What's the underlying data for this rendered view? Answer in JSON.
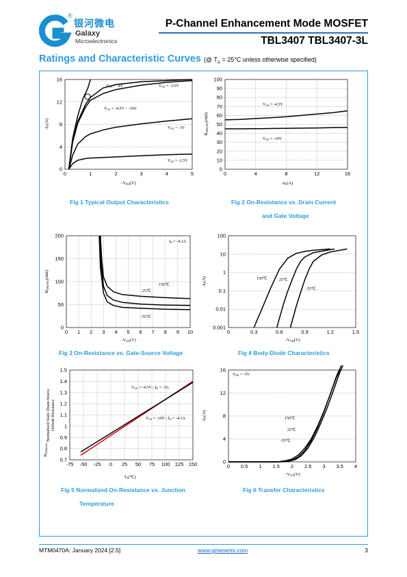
{
  "header": {
    "logo_cn": "银河微电",
    "logo_brand": "Galaxy",
    "logo_sub": "Microelectronics",
    "registered": "®",
    "title_line1": "P-Channel Enhancement Mode MOSFET",
    "title_line2": "TBL3407 TBL3407-3L",
    "accent_color": "#2d9bdc"
  },
  "section": {
    "title": "Ratings and Characteristic Curves",
    "condition_prefix": "(@ T",
    "condition_sub": "A",
    "condition_suffix": " = 25°C unless otherwise specified)"
  },
  "captions": {
    "fig1": "Fig 1    Typical Output Characteristics",
    "fig2_line1": "Fig 2    On-Resistance vs. Drain Current",
    "fig2_line2": "and Gate Voltage",
    "fig3": "Fig 3    On-Resistance vs. Gate-Source Voltage",
    "fig4": "Fig 4    Body-Diode Characteristics",
    "fig5_line1": "Fig 5    Normalized On-Resistance vs. Junction",
    "fig5_line2": "Temperature",
    "fig6": "Fig 6    Transfer Characteristics"
  },
  "chart_data": [
    {
      "id": "fig1",
      "type": "line",
      "xlabel": "-V_DS(V)",
      "ylabel": "-I_D(A)",
      "xlim": [
        0,
        5
      ],
      "ylim": [
        0,
        16
      ],
      "xticks": [
        "0",
        "1",
        "2",
        "3",
        "4",
        "5"
      ],
      "yticks": [
        "0",
        "4",
        "8",
        "12",
        "16"
      ],
      "series": [
        {
          "name": "V_GS = -4V",
          "x": [
            0.15,
            0.3,
            0.5,
            0.8,
            1.0,
            1.5,
            2.0,
            3.0,
            4.0,
            5.0
          ],
          "y": [
            0,
            5,
            8.5,
            11.5,
            12.8,
            14.5,
            15.1,
            15.6,
            15.8,
            16
          ]
        },
        {
          "name": "V_GS = -3.5V",
          "x": [
            0.15,
            0.3,
            0.5,
            0.8,
            1.0,
            1.5,
            2.0,
            3.0,
            4.0,
            5.0
          ],
          "y": [
            0,
            4.8,
            8.2,
            11,
            12.3,
            13.5,
            14.2,
            15,
            15.5,
            15.8
          ]
        },
        {
          "name": "V_GS = -4.5V ~ -10V",
          "x": [
            0.15,
            0.3,
            0.5,
            0.7,
            0.9,
            1.0
          ],
          "y": [
            0,
            5.5,
            9.5,
            12.5,
            14.5,
            16
          ]
        },
        {
          "name": "V_GS = -3V",
          "x": [
            0.15,
            0.3,
            0.5,
            0.8,
            1.0,
            1.5,
            2.0,
            3.0,
            4.0,
            5.0
          ],
          "y": [
            0,
            2.5,
            4.5,
            5.8,
            6.3,
            7,
            7.5,
            8.1,
            8.6,
            9
          ]
        },
        {
          "name": "V_GS = -2.5V",
          "x": [
            0.15,
            0.3,
            0.5,
            0.8,
            1.0,
            2.0,
            3.0,
            4.0,
            5.0
          ],
          "y": [
            0,
            1,
            1.6,
            1.9,
            2,
            2.2,
            2.4,
            2.6,
            2.7
          ]
        }
      ],
      "labels": [
        "V_GS = -4V",
        "V_GS = -3.5V",
        "V_GS = -4.5V ~ -10V",
        "V_GS = -3V",
        "V_GS = -2.5V"
      ]
    },
    {
      "id": "fig2",
      "type": "line",
      "xlabel": "-I_D(A)",
      "ylabel": "R_DS(ON)(mΩ)",
      "xlim": [
        0,
        16
      ],
      "ylim": [
        0,
        100
      ],
      "xticks": [
        "0",
        "4",
        "8",
        "12",
        "16"
      ],
      "yticks": [
        "0",
        "10",
        "20",
        "30",
        "40",
        "50",
        "60",
        "70",
        "80",
        "90",
        "100"
      ],
      "series": [
        {
          "name": "V_GS = -4.5V",
          "x": [
            0,
            2,
            4,
            6,
            8,
            10,
            12,
            14,
            16
          ],
          "y": [
            55,
            55.5,
            56.5,
            57.5,
            58.5,
            60,
            61.5,
            63,
            65
          ]
        },
        {
          "name": "V_GS = -10V",
          "x": [
            0,
            2,
            4,
            6,
            8,
            10,
            12,
            14,
            16
          ],
          "y": [
            45,
            45,
            45.2,
            45.4,
            45.6,
            45.8,
            46,
            46.3,
            46.6
          ]
        }
      ],
      "labels": [
        "V_GS = -4.5V",
        "V_GS = -10V"
      ]
    },
    {
      "id": "fig3",
      "type": "line",
      "xlabel": "-V_GS(V)",
      "ylabel": "R_DS(ON)(mΩ)",
      "xlim": [
        0,
        10
      ],
      "ylim": [
        0,
        200
      ],
      "xticks": [
        "0",
        "1",
        "2",
        "3",
        "4",
        "5",
        "6",
        "7",
        "8",
        "9",
        "10"
      ],
      "yticks": [
        "0",
        "50",
        "100",
        "150",
        "200"
      ],
      "annotation": "I_D = -4.1A",
      "series": [
        {
          "name": "150℃",
          "x": [
            2.75,
            2.85,
            3.0,
            3.3,
            3.8,
            4.5,
            6,
            8,
            10
          ],
          "y": [
            200,
            150,
            110,
            90,
            78,
            72,
            68,
            65,
            63
          ]
        },
        {
          "name": "25℃",
          "x": [
            2.7,
            2.8,
            3.0,
            3.3,
            3.8,
            4.5,
            6,
            8,
            10
          ],
          "y": [
            200,
            140,
            90,
            70,
            60,
            55,
            51,
            49,
            48
          ]
        },
        {
          "name": "-55℃",
          "x": [
            2.65,
            2.75,
            3.0,
            3.3,
            3.8,
            4.5,
            6,
            8,
            10
          ],
          "y": [
            200,
            130,
            75,
            56,
            48,
            44,
            42,
            40,
            39
          ]
        }
      ],
      "labels": [
        "150℃",
        "25℃",
        "-55℃"
      ]
    },
    {
      "id": "fig4",
      "type": "line",
      "xlabel": "-V_SD(V)",
      "ylabel": "-I_S(A)",
      "yscale": "log",
      "xlim": [
        0,
        1.5
      ],
      "ylim": [
        0.001,
        100
      ],
      "xticks": [
        "0",
        "0.3",
        "0.6",
        "0.9",
        "1.2",
        "1.5"
      ],
      "yticks": [
        "0.001",
        "0.01",
        "0.1",
        "1",
        "10",
        "100"
      ],
      "series": [
        {
          "name": "150℃",
          "x": [
            0.3,
            0.4,
            0.5,
            0.6,
            0.7,
            0.8,
            0.9,
            1.0,
            1.2
          ],
          "y": [
            0.001,
            0.012,
            0.15,
            1.5,
            6,
            11,
            14,
            16,
            19
          ]
        },
        {
          "name": "25℃",
          "x": [
            0.57,
            0.65,
            0.7,
            0.75,
            0.8,
            0.85,
            0.9,
            1.0,
            1.25
          ],
          "y": [
            0.001,
            0.02,
            0.1,
            0.4,
            1.5,
            4,
            7,
            12,
            19
          ]
        },
        {
          "name": "-55℃",
          "x": [
            0.73,
            0.8,
            0.85,
            0.9,
            0.95,
            1.0,
            1.1,
            1.2,
            1.4
          ],
          "y": [
            0.001,
            0.015,
            0.08,
            0.4,
            1.5,
            4,
            9,
            13,
            19
          ]
        }
      ],
      "labels": [
        "150℃",
        "25℃",
        "-55℃"
      ]
    },
    {
      "id": "fig5",
      "type": "line",
      "xlabel": "T_J(℃)",
      "ylabel_line1": "Normalized Static Drain-Source",
      "ylabel_line2": "OnState Resistance",
      "ylabel_sym": "R_DS(norm)",
      "xlim": [
        -75,
        150
      ],
      "ylim": [
        0.7,
        1.5
      ],
      "xticks": [
        "-75",
        "-50",
        "-25",
        "0",
        "25",
        "50",
        "75",
        "100",
        "125",
        "150"
      ],
      "yticks": [
        "0.7",
        "0.8",
        "0.9",
        "1",
        "1.1",
        "1.2",
        "1.3",
        "1.4",
        "1.5"
      ],
      "series": [
        {
          "name": "V_GS = -4.5V, I_D = -3A",
          "x": [
            -55,
            150
          ],
          "y": [
            0.74,
            1.4
          ]
        },
        {
          "name": "V_GS = -10V, I_D = -4.1A",
          "x": [
            -55,
            150
          ],
          "y": [
            0.77,
            1.39
          ]
        }
      ],
      "colors": [
        "#dd0000",
        "#000000"
      ],
      "labels": [
        "V_GS = -4.5V, I_D = -3A",
        "V_GS = -10V, I_D = -4.1A"
      ]
    },
    {
      "id": "fig6",
      "type": "line",
      "xlabel": "-V_GS(V)",
      "ylabel": "-I_D(A)",
      "xlim": [
        0,
        4
      ],
      "ylim": [
        0,
        16
      ],
      "xticks": [
        "0",
        "0.5",
        "1",
        "1.5",
        "2",
        "2.5",
        "3",
        "3.5",
        "4"
      ],
      "yticks": [
        "0",
        "4",
        "8",
        "12",
        "16"
      ],
      "annotation": "V_DS = -5V",
      "series": [
        {
          "name": "150℃",
          "x": [
            0,
            1.3,
            1.6,
            1.8,
            2.0,
            2.2,
            2.4,
            2.6,
            2.8,
            3.0,
            3.2,
            3.4,
            3.5
          ],
          "y": [
            0,
            0,
            0.05,
            0.2,
            0.5,
            1.2,
            2.4,
            4,
            6.2,
            8.8,
            11.8,
            14.8,
            16
          ]
        },
        {
          "name": "25℃",
          "x": [
            0,
            1.5,
            1.8,
            2.0,
            2.2,
            2.4,
            2.6,
            2.8,
            3.0,
            3.2,
            3.4,
            3.55
          ],
          "y": [
            0,
            0,
            0.1,
            0.3,
            0.9,
            2,
            3.7,
            6,
            8.7,
            11.8,
            15,
            16.8
          ]
        },
        {
          "name": "-55℃",
          "x": [
            0,
            1.6,
            1.9,
            2.1,
            2.3,
            2.5,
            2.7,
            2.9,
            3.1,
            3.3,
            3.5,
            3.6
          ],
          "y": [
            0,
            0,
            0.1,
            0.4,
            1.1,
            2.4,
            4.3,
            6.7,
            9.4,
            12.4,
            15.6,
            16.8
          ]
        }
      ],
      "labels": [
        "150℃",
        "25℃",
        "-55℃"
      ]
    }
  ],
  "footer": {
    "doc": "MTM0470A: January 2024 [2.5]",
    "url": "www.gmesemi.com",
    "page": "3"
  }
}
